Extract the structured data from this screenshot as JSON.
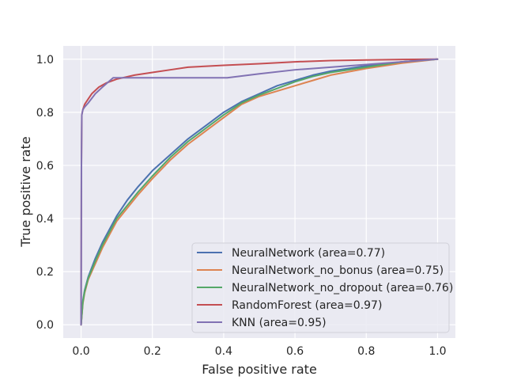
{
  "chart_data": {
    "type": "line",
    "xlabel": "False positive rate",
    "ylabel": "True positive rate",
    "xlim": [
      -0.05,
      1.05
    ],
    "ylim": [
      -0.05,
      1.05
    ],
    "xticks": [
      0.0,
      0.2,
      0.4,
      0.6,
      0.8,
      1.0
    ],
    "xtick_labels": [
      "0.0",
      "0.2",
      "0.4",
      "0.6",
      "0.8",
      "1.0"
    ],
    "yticks": [
      0.0,
      0.2,
      0.4,
      0.6,
      0.8,
      1.0
    ],
    "ytick_labels": [
      "0.0",
      "0.2",
      "0.4",
      "0.6",
      "0.8",
      "1.0"
    ],
    "grid": true,
    "background": "#eaeaf2",
    "legend_position": "lower-right",
    "series": [
      {
        "name": "NeuralNetwork (area=0.77)",
        "color": "#4c72b0",
        "x": [
          0,
          0.005,
          0.01,
          0.02,
          0.04,
          0.06,
          0.08,
          0.1,
          0.13,
          0.16,
          0.2,
          0.25,
          0.3,
          0.35,
          0.4,
          0.45,
          0.5,
          0.55,
          0.6,
          0.65,
          0.7,
          0.8,
          0.9,
          1.0
        ],
        "y": [
          0,
          0.09,
          0.13,
          0.18,
          0.25,
          0.31,
          0.36,
          0.41,
          0.47,
          0.52,
          0.58,
          0.64,
          0.7,
          0.75,
          0.8,
          0.84,
          0.87,
          0.9,
          0.92,
          0.94,
          0.955,
          0.975,
          0.99,
          1.0
        ]
      },
      {
        "name": "NeuralNetwork_no_bonus (area=0.75)",
        "color": "#dd8452",
        "x": [
          0,
          0.005,
          0.01,
          0.02,
          0.04,
          0.06,
          0.08,
          0.1,
          0.13,
          0.16,
          0.2,
          0.25,
          0.3,
          0.35,
          0.4,
          0.45,
          0.5,
          0.55,
          0.6,
          0.65,
          0.7,
          0.8,
          0.9,
          1.0
        ],
        "y": [
          0,
          0.08,
          0.12,
          0.17,
          0.23,
          0.29,
          0.34,
          0.39,
          0.44,
          0.49,
          0.55,
          0.62,
          0.68,
          0.73,
          0.78,
          0.83,
          0.86,
          0.88,
          0.9,
          0.92,
          0.94,
          0.965,
          0.985,
          1.0
        ]
      },
      {
        "name": "NeuralNetwork_no_dropout (area=0.76)",
        "color": "#55a868",
        "x": [
          0,
          0.005,
          0.01,
          0.02,
          0.04,
          0.06,
          0.08,
          0.1,
          0.13,
          0.16,
          0.2,
          0.25,
          0.3,
          0.35,
          0.4,
          0.45,
          0.5,
          0.55,
          0.6,
          0.65,
          0.7,
          0.8,
          0.9,
          1.0
        ],
        "y": [
          0,
          0.085,
          0.125,
          0.175,
          0.24,
          0.3,
          0.35,
          0.4,
          0.45,
          0.5,
          0.56,
          0.63,
          0.69,
          0.74,
          0.79,
          0.835,
          0.865,
          0.89,
          0.915,
          0.935,
          0.95,
          0.97,
          0.99,
          1.0
        ]
      },
      {
        "name": "RandomForest (area=0.97)",
        "color": "#c44e52",
        "x": [
          0,
          0.001,
          0.002,
          0.005,
          0.01,
          0.02,
          0.03,
          0.05,
          0.07,
          0.1,
          0.15,
          0.2,
          0.25,
          0.3,
          0.4,
          0.5,
          0.6,
          0.7,
          0.8,
          0.9,
          1.0
        ],
        "y": [
          0,
          0.6,
          0.79,
          0.81,
          0.83,
          0.85,
          0.87,
          0.895,
          0.91,
          0.925,
          0.94,
          0.95,
          0.96,
          0.97,
          0.977,
          0.983,
          0.99,
          0.995,
          0.997,
          0.999,
          1.0
        ]
      },
      {
        "name": "KNN (area=0.95)",
        "color": "#8172b3",
        "x": [
          0,
          0.001,
          0.002,
          0.005,
          0.01,
          0.02,
          0.04,
          0.06,
          0.09,
          0.15,
          0.3,
          0.41,
          0.5,
          0.6,
          0.7,
          0.8,
          0.9,
          1.0
        ],
        "y": [
          0,
          0.6,
          0.79,
          0.81,
          0.82,
          0.835,
          0.87,
          0.895,
          0.93,
          0.93,
          0.93,
          0.93,
          0.945,
          0.96,
          0.97,
          0.98,
          0.99,
          1.0
        ]
      }
    ]
  }
}
